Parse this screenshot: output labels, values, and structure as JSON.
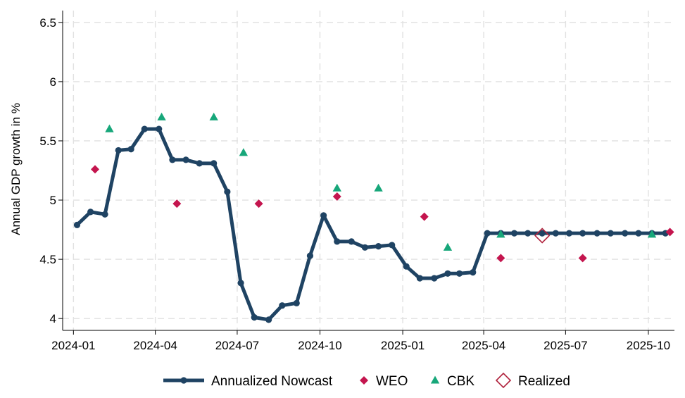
{
  "chart_data": {
    "type": "line",
    "title": "",
    "ylabel": "Annual GDP growth in %",
    "xlabel": "",
    "x_ticks": [
      "2024-01",
      "2024-04",
      "2024-07",
      "2024-10",
      "2025-01",
      "2025-04",
      "2025-07",
      "2025-10"
    ],
    "y_ticks": [
      "4",
      "4.5",
      "5",
      "5.5",
      "6",
      "6.5"
    ],
    "ylim": [
      4,
      6.5
    ],
    "xlim": [
      "2023-12-20",
      "2025-10-30"
    ],
    "grid": true,
    "legend_position": "bottom",
    "series": [
      {
        "name": "Annualized Nowcast",
        "kind": "line-markers",
        "color": "#1f4363",
        "points": [
          [
            "2024-01-05",
            4.79
          ],
          [
            "2024-01-20",
            4.9
          ],
          [
            "2024-02-05",
            4.88
          ],
          [
            "2024-02-20",
            5.42
          ],
          [
            "2024-03-05",
            5.43
          ],
          [
            "2024-03-20",
            5.6
          ],
          [
            "2024-04-05",
            5.6
          ],
          [
            "2024-04-20",
            5.34
          ],
          [
            "2024-05-05",
            5.34
          ],
          [
            "2024-05-20",
            5.31
          ],
          [
            "2024-06-05",
            5.31
          ],
          [
            "2024-06-20",
            5.07
          ],
          [
            "2024-07-05",
            4.3
          ],
          [
            "2024-07-20",
            4.01
          ],
          [
            "2024-08-05",
            3.99
          ],
          [
            "2024-08-20",
            4.11
          ],
          [
            "2024-09-05",
            4.13
          ],
          [
            "2024-09-20",
            4.53
          ],
          [
            "2024-10-05",
            4.87
          ],
          [
            "2024-10-20",
            4.65
          ],
          [
            "2024-11-05",
            4.65
          ],
          [
            "2024-11-20",
            4.6
          ],
          [
            "2024-12-05",
            4.61
          ],
          [
            "2024-12-20",
            4.62
          ],
          [
            "2025-01-05",
            4.44
          ],
          [
            "2025-01-20",
            4.34
          ],
          [
            "2025-02-05",
            4.34
          ],
          [
            "2025-02-20",
            4.38
          ],
          [
            "2025-03-05",
            4.38
          ],
          [
            "2025-03-20",
            4.39
          ],
          [
            "2025-04-05",
            4.72
          ],
          [
            "2025-04-20",
            4.72
          ],
          [
            "2025-05-05",
            4.72
          ],
          [
            "2025-05-20",
            4.72
          ],
          [
            "2025-06-05",
            4.72
          ],
          [
            "2025-06-20",
            4.72
          ],
          [
            "2025-07-05",
            4.72
          ],
          [
            "2025-07-20",
            4.72
          ],
          [
            "2025-08-05",
            4.72
          ],
          [
            "2025-08-20",
            4.72
          ],
          [
            "2025-09-05",
            4.72
          ],
          [
            "2025-09-20",
            4.72
          ],
          [
            "2025-10-05",
            4.72
          ],
          [
            "2025-10-20",
            4.72
          ]
        ]
      },
      {
        "name": "WEO",
        "kind": "diamond",
        "color": "#c4154e",
        "points": [
          [
            "2024-01-25",
            5.26
          ],
          [
            "2024-04-25",
            4.97
          ],
          [
            "2024-07-25",
            4.97
          ],
          [
            "2024-10-20",
            5.03
          ],
          [
            "2025-01-25",
            4.86
          ],
          [
            "2025-04-20",
            4.51
          ],
          [
            "2025-07-20",
            4.51
          ],
          [
            "2025-10-25",
            4.73
          ]
        ]
      },
      {
        "name": "CBK",
        "kind": "triangle",
        "color": "#17a77a",
        "points": [
          [
            "2024-02-10",
            5.6
          ],
          [
            "2024-04-08",
            5.7
          ],
          [
            "2024-06-05",
            5.7
          ],
          [
            "2024-07-08",
            5.4
          ],
          [
            "2024-10-20",
            5.1
          ],
          [
            "2024-12-05",
            5.1
          ],
          [
            "2025-02-20",
            4.6
          ],
          [
            "2025-04-20",
            4.71
          ],
          [
            "2025-10-05",
            4.71
          ]
        ]
      },
      {
        "name": "Realized",
        "kind": "hollow-diamond",
        "color": "#b0223c",
        "points": [
          [
            "2025-06-05",
            4.7
          ]
        ]
      }
    ]
  }
}
